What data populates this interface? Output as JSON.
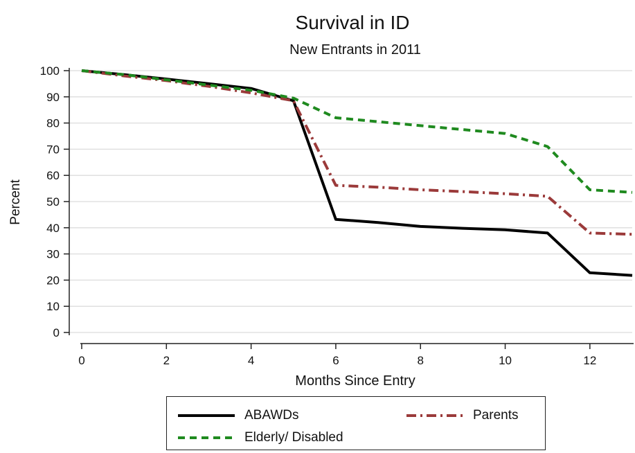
{
  "chart_data": {
    "type": "line",
    "title": "Survival in ID",
    "subtitle": "New Entrants in 2011",
    "xlabel": "Months Since Entry",
    "ylabel": "Percent",
    "xlim": [
      0,
      13
    ],
    "ylim": [
      0,
      100
    ],
    "x_ticks": [
      0,
      2,
      4,
      6,
      8,
      10,
      12
    ],
    "y_ticks": [
      0,
      10,
      20,
      30,
      40,
      50,
      60,
      70,
      80,
      90,
      100
    ],
    "grid": true,
    "legend_position": "bottom",
    "x": [
      0,
      1,
      2,
      3,
      4,
      5,
      6,
      7,
      8,
      9,
      10,
      11,
      12,
      13
    ],
    "series": [
      {
        "name": "ABAWDs",
        "color": "#000000",
        "dash": "solid",
        "values": [
          100,
          98.5,
          96.8,
          95,
          93.2,
          88.5,
          43.2,
          42,
          40.5,
          39.8,
          39.2,
          38,
          22.8,
          21.8
        ]
      },
      {
        "name": "Parents",
        "color": "#9b3a3a",
        "dash": "dash-dot",
        "values": [
          100,
          98,
          96.2,
          94,
          91.5,
          88.5,
          56.2,
          55.5,
          54.5,
          53.8,
          53,
          52,
          38,
          37.5
        ]
      },
      {
        "name": "Elderly/ Disabled",
        "color": "#1f8a1f",
        "dash": "dash",
        "values": [
          100,
          98.5,
          96.5,
          94.5,
          92.5,
          89.5,
          82,
          80.5,
          79,
          77.5,
          76,
          71,
          54.5,
          53.5
        ]
      }
    ]
  }
}
